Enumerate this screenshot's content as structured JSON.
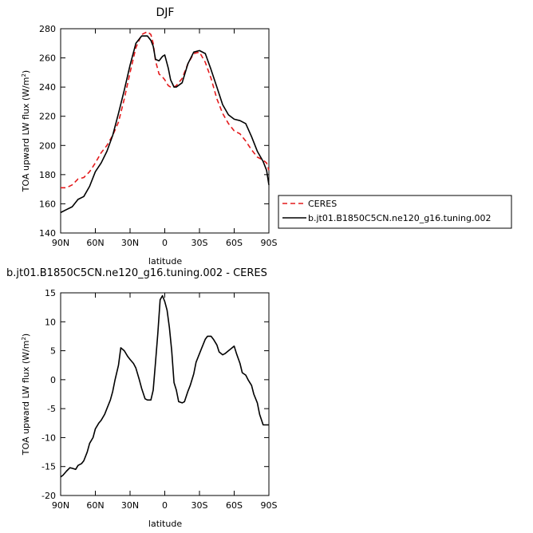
{
  "chart_data": [
    {
      "type": "line",
      "title": "DJF",
      "xlabel": "latitude",
      "ylabel": "TOA upward LW flux (W/m",
      "ylabel_sup": "2",
      "ylabel_tail": ")",
      "xlim": [
        90,
        -90
      ],
      "ylim": [
        140,
        280
      ],
      "xticks": [
        90,
        60,
        30,
        0,
        -30,
        -60,
        -90
      ],
      "xtick_labels": [
        "90N",
        "60N",
        "30N",
        "0",
        "30S",
        "60S",
        "90S"
      ],
      "yticks": [
        140,
        160,
        180,
        200,
        220,
        240,
        260,
        280
      ],
      "ytick_labels": [
        "140",
        "160",
        "180",
        "200",
        "220",
        "240",
        "260",
        "280"
      ],
      "legend_position": "right",
      "series": [
        {
          "name": "CERES",
          "color": "#e41a1c",
          "dash": "dashed",
          "x": [
            90,
            85,
            80,
            75,
            70,
            65,
            60,
            55,
            50,
            45,
            40,
            35,
            30,
            25,
            20,
            15,
            12,
            10,
            8,
            5,
            2,
            0,
            -3,
            -5,
            -8,
            -10,
            -15,
            -20,
            -25,
            -30,
            -35,
            -40,
            -45,
            -50,
            -55,
            -60,
            -65,
            -70,
            -75,
            -80,
            -85,
            -88,
            -90
          ],
          "y": [
            171,
            171,
            173,
            177,
            178,
            182,
            188,
            195,
            200,
            207,
            216,
            232,
            250,
            267,
            276,
            278,
            276,
            270,
            258,
            249,
            247,
            245,
            241,
            240,
            240,
            241,
            246,
            256,
            263,
            264,
            257,
            246,
            232,
            222,
            215,
            210,
            208,
            203,
            197,
            192,
            190,
            188,
            183
          ]
        },
        {
          "name": "b.jt01.B1850C5CN.ne120_g16.tuning.002",
          "color": "#000000",
          "dash": "solid",
          "x": [
            90,
            85,
            80,
            75,
            70,
            65,
            60,
            55,
            50,
            45,
            40,
            35,
            30,
            25,
            20,
            15,
            12,
            10,
            8,
            5,
            2,
            0,
            -3,
            -5,
            -8,
            -10,
            -15,
            -20,
            -25,
            -30,
            -35,
            -40,
            -45,
            -50,
            -55,
            -60,
            -65,
            -70,
            -75,
            -80,
            -85,
            -88,
            -90
          ],
          "y": [
            154,
            156,
            158,
            163,
            165,
            172,
            182,
            188,
            196,
            207,
            222,
            238,
            255,
            270,
            275,
            275,
            272,
            268,
            259,
            258,
            261,
            262,
            253,
            245,
            240,
            240,
            243,
            256,
            264,
            265,
            263,
            252,
            240,
            228,
            221,
            218,
            217,
            215,
            206,
            196,
            189,
            183,
            173
          ]
        }
      ]
    },
    {
      "type": "line",
      "title": "b.jt01.B1850C5CN.ne120_g16.tuning.002 - CERES",
      "xlabel": "latitude",
      "ylabel": "TOA upward LW flux (W/m",
      "ylabel_sup": "2",
      "ylabel_tail": ")",
      "xlim": [
        90,
        -90
      ],
      "ylim": [
        -20,
        15
      ],
      "xticks": [
        90,
        60,
        30,
        0,
        -30,
        -60,
        -90
      ],
      "xtick_labels": [
        "90N",
        "60N",
        "30N",
        "0",
        "30S",
        "60S",
        "90S"
      ],
      "yticks": [
        -20,
        -15,
        -10,
        -5,
        0,
        5,
        10,
        15
      ],
      "ytick_labels": [
        "-20",
        "-15",
        "-10",
        "-5",
        "0",
        "5",
        "10",
        "15"
      ],
      "series": [
        {
          "color": "#000000",
          "dash": "solid",
          "x": [
            90,
            88,
            85,
            82,
            80,
            77,
            75,
            72,
            70,
            67,
            65,
            62,
            60,
            57,
            55,
            52,
            50,
            47,
            45,
            43,
            40,
            38,
            35,
            32,
            30,
            27,
            25,
            22,
            20,
            17,
            15,
            12,
            10,
            8,
            6,
            4,
            2,
            0,
            -2,
            -4,
            -6,
            -8,
            -10,
            -12,
            -15,
            -17,
            -20,
            -22,
            -25,
            -27,
            -30,
            -32,
            -35,
            -37,
            -40,
            -42,
            -45,
            -47,
            -50,
            -52,
            -55,
            -57,
            -60,
            -62,
            -65,
            -67,
            -70,
            -72,
            -75,
            -77,
            -80,
            -82,
            -85,
            -87,
            -88,
            -90
          ],
          "y": [
            -16.8,
            -16.5,
            -15.8,
            -15.2,
            -15.3,
            -15.5,
            -14.8,
            -14.5,
            -14.0,
            -12.5,
            -11.0,
            -10.0,
            -8.5,
            -7.5,
            -7.0,
            -6.0,
            -5.0,
            -3.5,
            -2.0,
            0.0,
            2.5,
            5.5,
            5.0,
            4.0,
            3.5,
            2.8,
            2.0,
            0.0,
            -1.5,
            -3.3,
            -3.5,
            -3.5,
            -1.8,
            3.0,
            8.0,
            13.8,
            14.5,
            13.5,
            12.0,
            9.0,
            5.0,
            -0.5,
            -1.8,
            -3.8,
            -4.0,
            -3.8,
            -2.0,
            -1.0,
            1.0,
            3.0,
            4.5,
            5.5,
            7.0,
            7.5,
            7.5,
            7.0,
            6.0,
            4.8,
            4.3,
            4.5,
            5.0,
            5.3,
            5.8,
            4.5,
            2.8,
            1.2,
            0.8,
            0.0,
            -1.0,
            -2.5,
            -4.0,
            -6.0,
            -7.8,
            -7.8,
            -7.8,
            -7.8
          ]
        }
      ]
    }
  ]
}
